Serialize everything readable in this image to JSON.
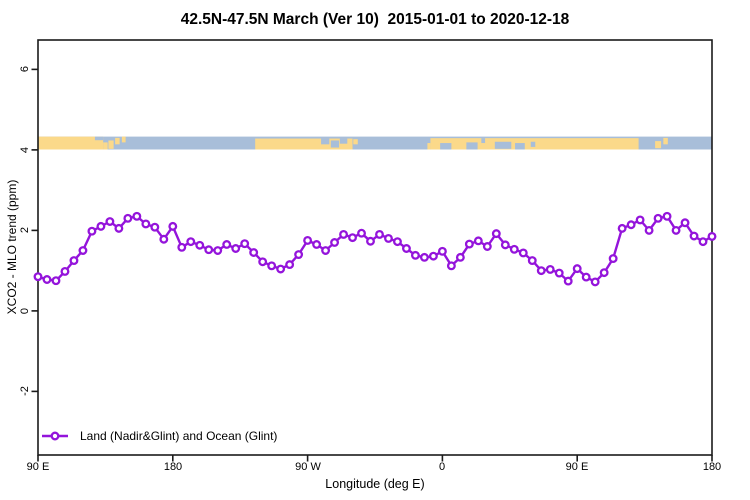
{
  "colors": {
    "line": "#9414DB",
    "marker_fill": "#FFFFFF",
    "land": "#FBD98A",
    "ocean": "#A8BED9",
    "frame": "#1A1A1A",
    "background": "#FFFFFF"
  },
  "chart_data": {
    "type": "line",
    "title": "42.5N-47.5N March (Ver 10)  2015-01-01 to 2020-12-18",
    "xlabel": "Longitude (deg E)",
    "ylabel": "XCO2 - MLO trend (ppm)",
    "xlim": [
      90,
      540
    ],
    "ylim": [
      -3.58,
      6.73
    ],
    "grid": false,
    "legend_position": "bottom-left",
    "xticks": {
      "values": [
        90,
        180,
        270,
        360,
        450,
        540
      ],
      "labels": [
        "90 E",
        "180",
        "90 W",
        "0",
        "90 E",
        "180"
      ]
    },
    "yticks": {
      "values": [
        6,
        4,
        2,
        0,
        -2
      ],
      "labels": [
        "6",
        "4",
        "2",
        "0",
        "-2"
      ]
    },
    "series": [
      {
        "name": "Land (Nadir&Glint) and Ocean (Glint)",
        "marker": "open-circle",
        "x": [
          90,
          96,
          102,
          108,
          114,
          120,
          126,
          132,
          138,
          144,
          150,
          156,
          162,
          168,
          174,
          180,
          186,
          192,
          198,
          204,
          210,
          216,
          222,
          228,
          234,
          240,
          246,
          252,
          258,
          264,
          270,
          276,
          282,
          288,
          294,
          300,
          306,
          312,
          318,
          324,
          330,
          336,
          342,
          348,
          354,
          360,
          366,
          372,
          378,
          384,
          390,
          396,
          402,
          408,
          414,
          420,
          426,
          432,
          438,
          444,
          450,
          456,
          462,
          468,
          474,
          480,
          486,
          492,
          498,
          504,
          510,
          516,
          522,
          528,
          534,
          540
        ],
        "values": [
          0.85,
          0.78,
          0.75,
          0.98,
          1.25,
          1.5,
          1.98,
          2.1,
          2.22,
          2.05,
          2.3,
          2.35,
          2.16,
          2.08,
          1.78,
          2.1,
          1.58,
          1.72,
          1.63,
          1.52,
          1.5,
          1.65,
          1.55,
          1.67,
          1.45,
          1.22,
          1.12,
          1.04,
          1.15,
          1.4,
          1.75,
          1.65,
          1.5,
          1.7,
          1.9,
          1.82,
          1.93,
          1.73,
          1.9,
          1.8,
          1.72,
          1.55,
          1.38,
          1.33,
          1.36,
          1.48,
          1.12,
          1.33,
          1.66,
          1.74,
          1.6,
          1.92,
          1.64,
          1.53,
          1.44,
          1.25,
          1.0,
          1.03,
          0.94,
          0.74,
          1.05,
          0.84,
          0.72,
          0.95,
          1.3,
          2.05,
          2.14,
          2.26,
          2.0,
          2.3,
          2.35,
          2.0,
          2.19,
          1.86,
          1.72,
          1.85
        ]
      }
    ],
    "map_band": {
      "description": "land-ocean strip for latitude band 42.5N-47.5N",
      "ppm_top": 4.33,
      "ppm_bottom": 4.01,
      "base": "ocean",
      "rects": [
        {
          "t": "land",
          "l0": 90,
          "l1": 133.5,
          "f0": 0,
          "f1": 1
        },
        {
          "t": "ocean",
          "l0": 128,
          "l1": 133.5,
          "f0": 0,
          "f1": 0.28
        },
        {
          "t": "land",
          "l0": 133.5,
          "l1": 136.5,
          "f0": 0.45,
          "f1": 1
        },
        {
          "t": "land",
          "l0": 137,
          "l1": 140.5,
          "f0": 0.3,
          "f1": 0.95
        },
        {
          "t": "land",
          "l0": 141.5,
          "l1": 144.5,
          "f0": 0.1,
          "f1": 0.6
        },
        {
          "t": "land",
          "l0": 146,
          "l1": 148.5,
          "f0": 0,
          "f1": 0.45
        },
        {
          "t": "land",
          "l0": 235,
          "l1": 300,
          "f0": 0.15,
          "f1": 1
        },
        {
          "t": "ocean",
          "l0": 279,
          "l1": 284.5,
          "f0": 0.15,
          "f1": 0.6
        },
        {
          "t": "ocean",
          "l0": 285.5,
          "l1": 291,
          "f0": 0.3,
          "f1": 0.85
        },
        {
          "t": "ocean",
          "l0": 291.5,
          "l1": 296.5,
          "f0": 0.15,
          "f1": 0.55
        },
        {
          "t": "land",
          "l0": 300.5,
          "l1": 303.5,
          "f0": 0.2,
          "f1": 0.6
        },
        {
          "t": "land",
          "l0": 350,
          "l1": 352,
          "f0": 0.5,
          "f1": 1
        },
        {
          "t": "land",
          "l0": 352,
          "l1": 491,
          "f0": 0.12,
          "f1": 1
        },
        {
          "t": "ocean",
          "l0": 358.5,
          "l1": 366,
          "f0": 0.5,
          "f1": 1
        },
        {
          "t": "ocean",
          "l0": 376,
          "l1": 383.5,
          "f0": 0.45,
          "f1": 1
        },
        {
          "t": "ocean",
          "l0": 386,
          "l1": 388.5,
          "f0": 0.12,
          "f1": 0.5
        },
        {
          "t": "ocean",
          "l0": 395,
          "l1": 406,
          "f0": 0.4,
          "f1": 0.95
        },
        {
          "t": "ocean",
          "l0": 408.5,
          "l1": 415,
          "f0": 0.5,
          "f1": 1
        },
        {
          "t": "ocean",
          "l0": 419,
          "l1": 422,
          "f0": 0.4,
          "f1": 0.8
        },
        {
          "t": "land",
          "l0": 502,
          "l1": 506,
          "f0": 0.35,
          "f1": 0.9
        },
        {
          "t": "land",
          "l0": 507.5,
          "l1": 510.5,
          "f0": 0.1,
          "f1": 0.6
        }
      ]
    }
  }
}
